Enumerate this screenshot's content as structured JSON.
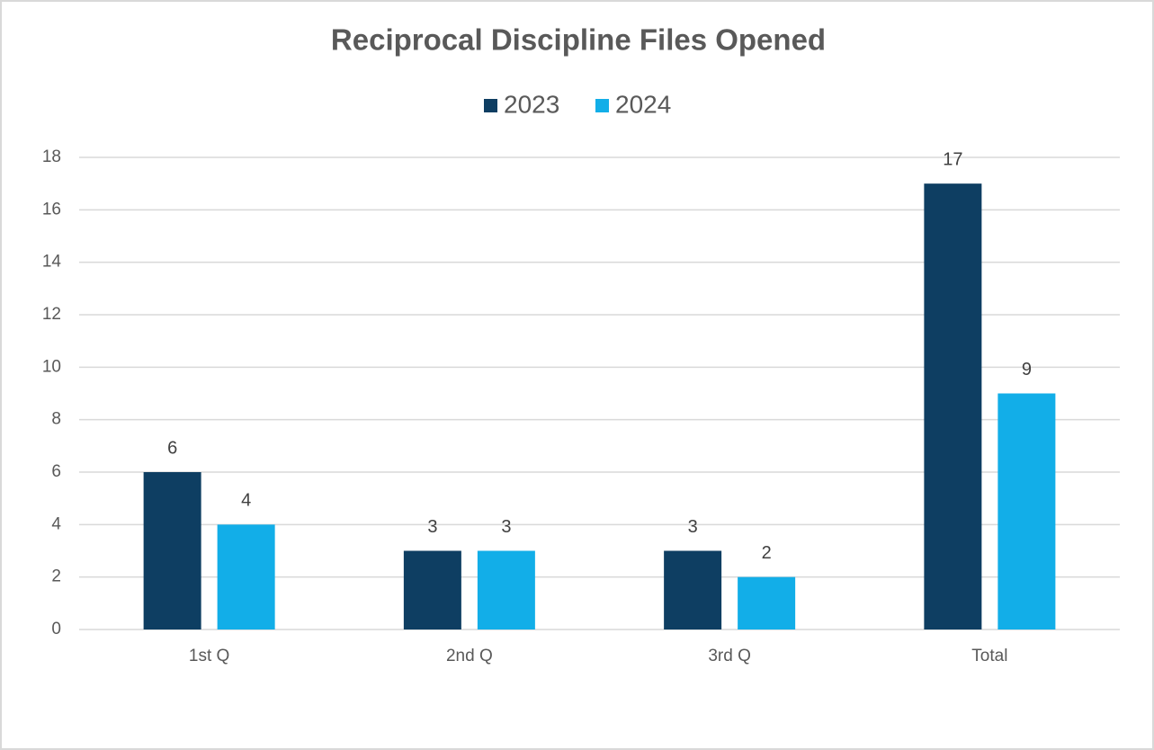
{
  "chart_data": {
    "type": "bar",
    "title": "Reciprocal Discipline Files Opened",
    "categories": [
      "1st Q",
      "2nd Q",
      "3rd Q",
      "Total"
    ],
    "series": [
      {
        "name": "2023",
        "color": "#0e3e62",
        "values": [
          6,
          3,
          3,
          17
        ]
      },
      {
        "name": "2024",
        "color": "#12aee8",
        "values": [
          4,
          3,
          2,
          9
        ]
      }
    ],
    "ylim": [
      0,
      18
    ],
    "yticks": [
      0,
      2,
      4,
      6,
      8,
      10,
      12,
      14,
      16,
      18
    ],
    "grid": true,
    "legend": "top"
  }
}
